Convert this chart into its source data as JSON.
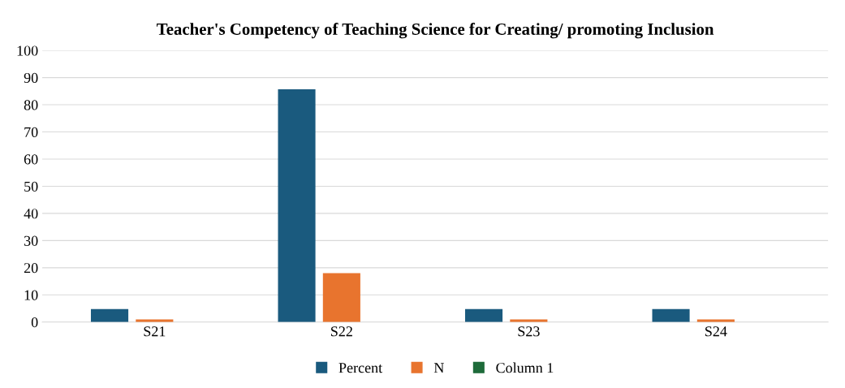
{
  "chart_data": {
    "type": "bar",
    "title": "Teacher's Competency of Teaching Science for Creating/ promoting Inclusion",
    "categories": [
      "S21",
      "S22",
      "S23",
      "S24"
    ],
    "series": [
      {
        "name": "Percent",
        "color": "#1a5a7e",
        "values": [
          4.8,
          85.7,
          4.8,
          4.8
        ]
      },
      {
        "name": "N",
        "color": "#e8742e",
        "values": [
          1,
          18,
          1,
          1
        ]
      },
      {
        "name": "Column 1",
        "color": "#1e6b3a",
        "values": [
          null,
          null,
          null,
          null
        ]
      }
    ],
    "ylim": [
      0,
      100
    ],
    "yticks": [
      0,
      10,
      20,
      30,
      40,
      50,
      60,
      70,
      80,
      90,
      100
    ],
    "grid": "y",
    "legend": "bottom"
  }
}
